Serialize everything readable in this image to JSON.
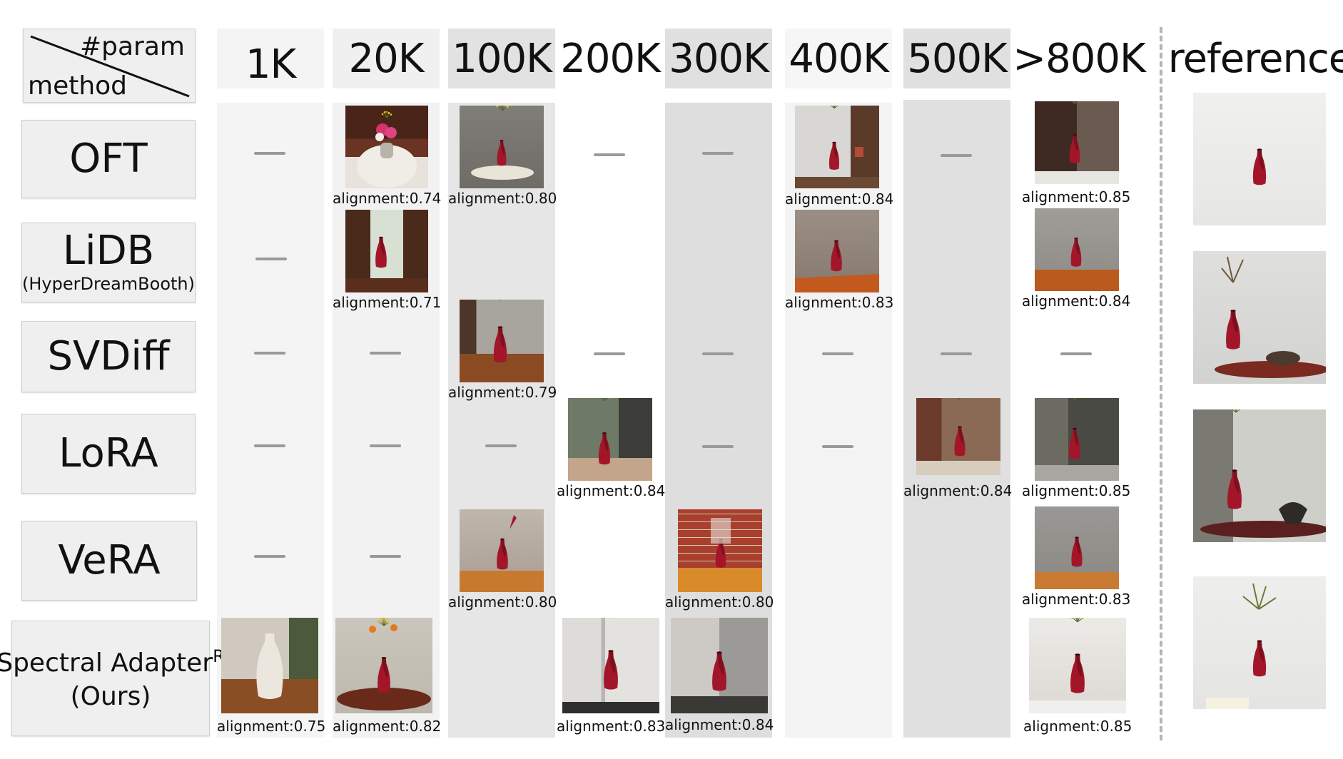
{
  "header": {
    "corner_top": "#param",
    "corner_bottom": "method",
    "columns": [
      "1K",
      "20K",
      "100K",
      "200K",
      "300K",
      "400K",
      "500K",
      ">800K"
    ],
    "reference": "reference"
  },
  "methods": [
    {
      "name": "OFT",
      "sub": ""
    },
    {
      "name": "LiDB",
      "sub": "(HyperDreamBooth)"
    },
    {
      "name": "SVDiff",
      "sub": ""
    },
    {
      "name": "LoRA",
      "sub": ""
    },
    {
      "name": "VeRA",
      "sub": ""
    },
    {
      "name": "Spectral Adapter",
      "sup": "R",
      "sub": "(Ours)"
    }
  ],
  "cells": {
    "oft_20k": "alignment:0.74",
    "oft_100k": "alignment:0.80",
    "oft_400k": "alignment:0.84",
    "oft_800k": "alignment:0.85",
    "lidb_20k": "alignment:0.71",
    "lidb_400k": "alignment:0.83",
    "lidb_800k": "alignment:0.84",
    "svdiff_100k": "alignment:0.79",
    "lora_200k": "alignment:0.84",
    "lora_500k": "alignment:0.84",
    "lora_800k": "alignment:0.85",
    "vera_100k": "alignment:0.80",
    "vera_300k": "alignment:0.80",
    "vera_800k": "alignment:0.83",
    "ours_1k": "alignment:0.75",
    "ours_20k": "alignment:0.82",
    "ours_200k": "alignment:0.83",
    "ours_300k": "alignment:0.84",
    "ours_800k": "alignment:0.85"
  },
  "colors": {
    "light_column": "#f4f4f4",
    "dark_column": "#e2e2e2",
    "method_box": "#efefef",
    "dash": "#9a9a9a",
    "vase_red": "#a3162a"
  }
}
